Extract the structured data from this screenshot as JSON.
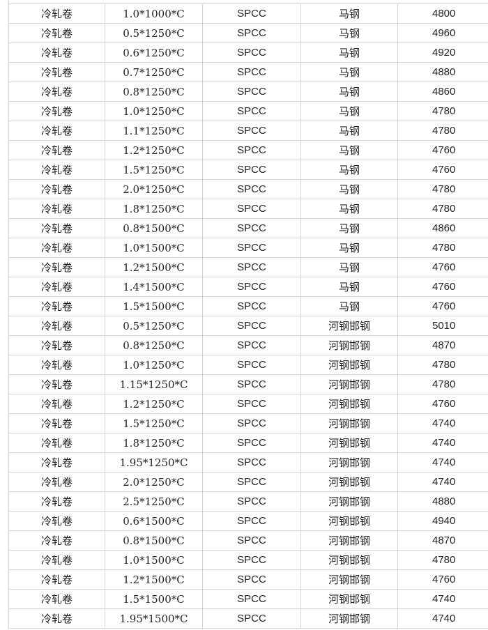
{
  "table": {
    "rows": [
      [
        "冷轧卷",
        "1.0*1000*C",
        "SPCC",
        "马钢",
        "4800"
      ],
      [
        "冷轧卷",
        "0.5*1250*C",
        "SPCC",
        "马钢",
        "4960"
      ],
      [
        "冷轧卷",
        "0.6*1250*C",
        "SPCC",
        "马钢",
        "4920"
      ],
      [
        "冷轧卷",
        "0.7*1250*C",
        "SPCC",
        "马钢",
        "4880"
      ],
      [
        "冷轧卷",
        "0.8*1250*C",
        "SPCC",
        "马钢",
        "4860"
      ],
      [
        "冷轧卷",
        "1.0*1250*C",
        "SPCC",
        "马钢",
        "4780"
      ],
      [
        "冷轧卷",
        "1.1*1250*C",
        "SPCC",
        "马钢",
        "4780"
      ],
      [
        "冷轧卷",
        "1.2*1250*C",
        "SPCC",
        "马钢",
        "4760"
      ],
      [
        "冷轧卷",
        "1.5*1250*C",
        "SPCC",
        "马钢",
        "4760"
      ],
      [
        "冷轧卷",
        "2.0*1250*C",
        "SPCC",
        "马钢",
        "4780"
      ],
      [
        "冷轧卷",
        "1.8*1250*C",
        "SPCC",
        "马钢",
        "4780"
      ],
      [
        "冷轧卷",
        "0.8*1500*C",
        "SPCC",
        "马钢",
        "4860"
      ],
      [
        "冷轧卷",
        "1.0*1500*C",
        "SPCC",
        "马钢",
        "4780"
      ],
      [
        "冷轧卷",
        "1.2*1500*C",
        "SPCC",
        "马钢",
        "4760"
      ],
      [
        "冷轧卷",
        "1.4*1500*C",
        "SPCC",
        "马钢",
        "4760"
      ],
      [
        "冷轧卷",
        "1.5*1500*C",
        "SPCC",
        "马钢",
        "4760"
      ],
      [
        "冷轧卷",
        "0.5*1250*C",
        "SPCC",
        "河钢邯钢",
        "5010"
      ],
      [
        "冷轧卷",
        "0.8*1250*C",
        "SPCC",
        "河钢邯钢",
        "4870"
      ],
      [
        "冷轧卷",
        "1.0*1250*C",
        "SPCC",
        "河钢邯钢",
        "4780"
      ],
      [
        "冷轧卷",
        "1.15*1250*C",
        "SPCC",
        "河钢邯钢",
        "4780"
      ],
      [
        "冷轧卷",
        "1.2*1250*C",
        "SPCC",
        "河钢邯钢",
        "4760"
      ],
      [
        "冷轧卷",
        "1.5*1250*C",
        "SPCC",
        "河钢邯钢",
        "4740"
      ],
      [
        "冷轧卷",
        "1.8*1250*C",
        "SPCC",
        "河钢邯钢",
        "4740"
      ],
      [
        "冷轧卷",
        "1.95*1250*C",
        "SPCC",
        "河钢邯钢",
        "4740"
      ],
      [
        "冷轧卷",
        "2.0*1250*C",
        "SPCC",
        "河钢邯钢",
        "4740"
      ],
      [
        "冷轧卷",
        "2.5*1250*C",
        "SPCC",
        "河钢邯钢",
        "4880"
      ],
      [
        "冷轧卷",
        "0.6*1500*C",
        "SPCC",
        "河钢邯钢",
        "4940"
      ],
      [
        "冷轧卷",
        "0.8*1500*C",
        "SPCC",
        "河钢邯钢",
        "4870"
      ],
      [
        "冷轧卷",
        "1.0*1500*C",
        "SPCC",
        "河钢邯钢",
        "4780"
      ],
      [
        "冷轧卷",
        "1.2*1500*C",
        "SPCC",
        "河钢邯钢",
        "4760"
      ],
      [
        "冷轧卷",
        "1.5*1500*C",
        "SPCC",
        "河钢邯钢",
        "4740"
      ],
      [
        "冷轧卷",
        "1.95*1500*C",
        "SPCC",
        "河钢邯钢",
        "4740"
      ]
    ]
  }
}
